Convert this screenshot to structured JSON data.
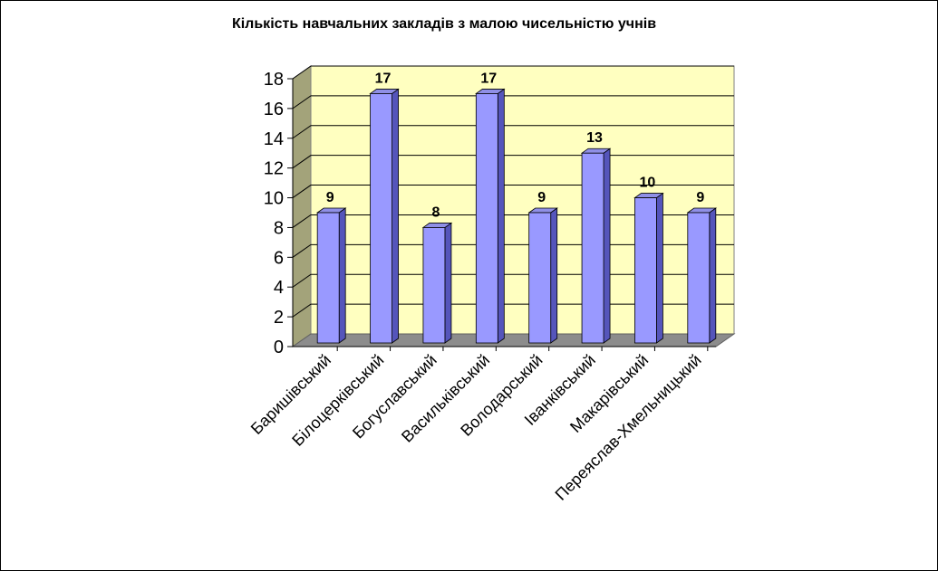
{
  "chart_data": {
    "type": "bar",
    "title": "Кількість навчальних закладів з малою чисельністю учнів",
    "xlabel": "",
    "ylabel": "",
    "categories": [
      "Баришівський",
      "Білоцерківський",
      "Богуславський",
      "Васильківський",
      "Володарський",
      "Іванківський",
      "Макарівський",
      "Переяслав-Хмельницький"
    ],
    "values": [
      9,
      17,
      8,
      17,
      9,
      13,
      10,
      9
    ],
    "ylim": [
      0,
      18
    ],
    "yticks": [
      0,
      2,
      4,
      6,
      8,
      10,
      12,
      14,
      16,
      18
    ],
    "grid": true,
    "legend": "none",
    "colors": {
      "bar_front": "#9999ff",
      "bar_side": "#5555bb",
      "bar_top": "#8f8fe6",
      "plot_back": "#ffffc0",
      "plot_wall": "#a3a37a",
      "plot_floor": "#8c8c8c"
    }
  }
}
